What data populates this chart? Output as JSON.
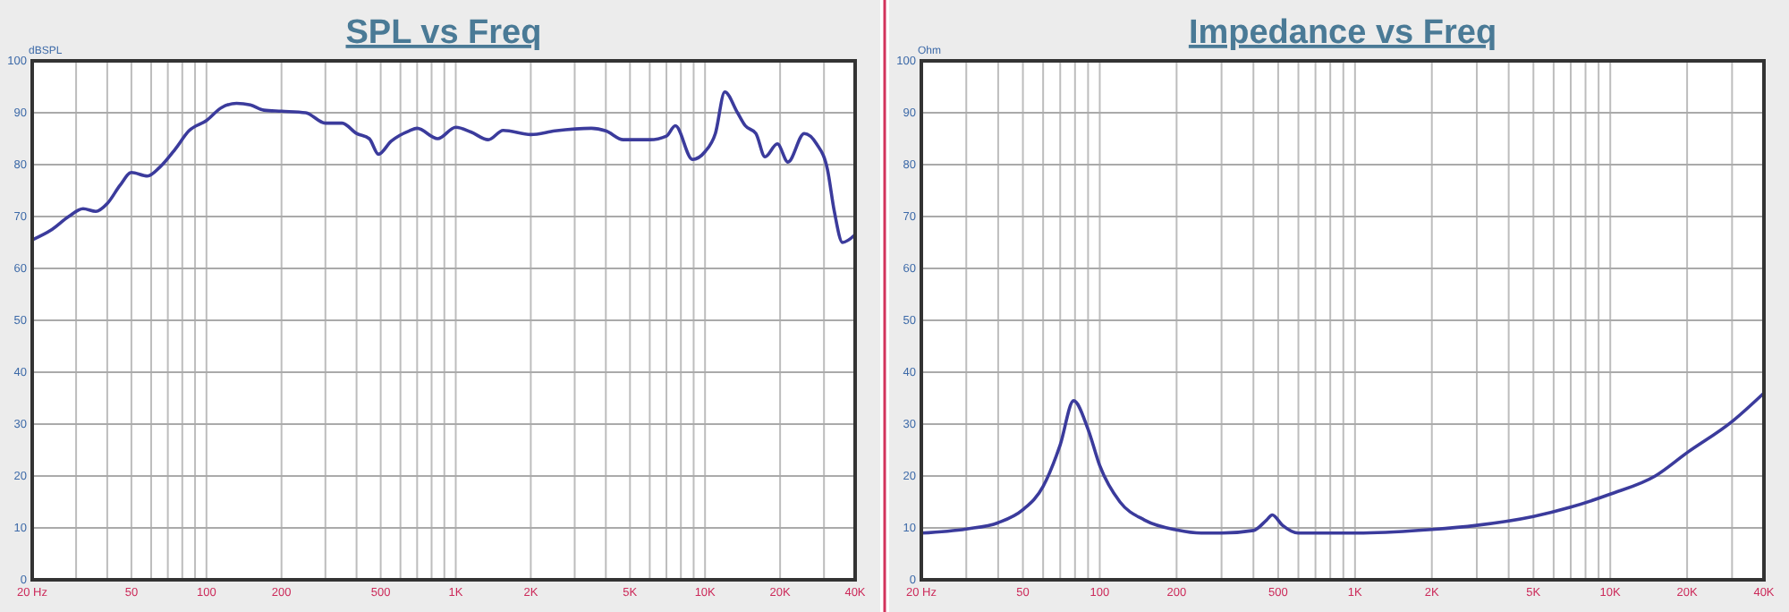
{
  "chart_data": [
    {
      "type": "line",
      "title": "SPL vs Freq",
      "ylabel": "dBSPL",
      "log": "x",
      "grid": true,
      "xlim": [
        20,
        40000
      ],
      "ylim": [
        0,
        100
      ],
      "xticks": [
        {
          "value": 20,
          "label": "20 Hz"
        },
        {
          "value": 30,
          "label": null
        },
        {
          "value": 40,
          "label": null
        },
        50,
        {
          "value": 60,
          "label": null
        },
        {
          "value": 70,
          "label": null
        },
        {
          "value": 80,
          "label": null
        },
        {
          "value": 90,
          "label": null
        },
        100,
        200,
        {
          "value": 300,
          "label": null
        },
        {
          "value": 400,
          "label": null
        },
        500,
        {
          "value": 600,
          "label": null
        },
        {
          "value": 700,
          "label": null
        },
        {
          "value": 800,
          "label": null
        },
        {
          "value": 900,
          "label": null
        },
        {
          "value": 1000,
          "label": "1K"
        },
        {
          "value": 2000,
          "label": "2K"
        },
        {
          "value": 3000,
          "label": null
        },
        {
          "value": 4000,
          "label": null
        },
        {
          "value": 5000,
          "label": "5K"
        },
        {
          "value": 6000,
          "label": null
        },
        {
          "value": 7000,
          "label": null
        },
        {
          "value": 8000,
          "label": null
        },
        {
          "value": 9000,
          "label": null
        },
        {
          "value": 10000,
          "label": "10K"
        },
        {
          "value": 20000,
          "label": "20K"
        },
        {
          "value": 30000,
          "label": null
        },
        {
          "value": 40000,
          "label": "40K"
        }
      ],
      "yticks": [
        0,
        10,
        20,
        30,
        40,
        50,
        60,
        70,
        80,
        90,
        100
      ],
      "series": [
        {
          "color": "#3b3b9c",
          "x": [
            20,
            24,
            28,
            32,
            36,
            40,
            45,
            50,
            58,
            65,
            75,
            85,
            100,
            115,
            132,
            150,
            170,
            200,
            250,
            300,
            350,
            400,
            450,
            490,
            550,
            650,
            700,
            846,
            1000,
            1150,
            1350,
            1550,
            2000,
            2500,
            3500,
            4000,
            4700,
            6000,
            7000,
            7600,
            8900,
            10000,
            11000,
            12000,
            13500,
            14500,
            16000,
            17400,
            19500,
            21500,
            25000,
            28000,
            31000,
            33000,
            35600,
            40000
          ],
          "values": [
            65.5,
            67.5,
            70,
            71.5,
            71,
            72.5,
            76,
            78.5,
            77.8,
            79.5,
            83,
            86.5,
            88.5,
            91,
            91.8,
            91.5,
            90.5,
            90.3,
            90,
            88,
            88,
            86,
            85,
            82,
            84.5,
            86.5,
            87,
            85,
            87.2,
            86.3,
            84.8,
            86.6,
            85.8,
            86.5,
            87,
            86.5,
            84.8,
            84.8,
            85.5,
            87.5,
            81,
            82.5,
            86,
            94,
            90,
            87.5,
            86,
            81.5,
            84,
            80.5,
            86,
            84,
            79,
            71,
            65,
            66.5
          ]
        }
      ]
    },
    {
      "type": "line",
      "title": "Impedance vs Freq",
      "ylabel": "Ohm",
      "log": "x",
      "grid": true,
      "xlim": [
        20,
        40000
      ],
      "ylim": [
        0,
        100
      ],
      "xticks": [
        {
          "value": 20,
          "label": "20 Hz"
        },
        {
          "value": 30,
          "label": null
        },
        {
          "value": 40,
          "label": null
        },
        50,
        {
          "value": 60,
          "label": null
        },
        {
          "value": 70,
          "label": null
        },
        {
          "value": 80,
          "label": null
        },
        {
          "value": 90,
          "label": null
        },
        100,
        200,
        {
          "value": 300,
          "label": null
        },
        {
          "value": 400,
          "label": null
        },
        500,
        {
          "value": 600,
          "label": null
        },
        {
          "value": 700,
          "label": null
        },
        {
          "value": 800,
          "label": null
        },
        {
          "value": 900,
          "label": null
        },
        {
          "value": 1000,
          "label": "1K"
        },
        {
          "value": 2000,
          "label": "2K"
        },
        {
          "value": 3000,
          "label": null
        },
        {
          "value": 4000,
          "label": null
        },
        {
          "value": 5000,
          "label": "5K"
        },
        {
          "value": 6000,
          "label": null
        },
        {
          "value": 7000,
          "label": null
        },
        {
          "value": 8000,
          "label": null
        },
        {
          "value": 9000,
          "label": null
        },
        {
          "value": 10000,
          "label": "10K"
        },
        {
          "value": 20000,
          "label": "20K"
        },
        {
          "value": 30000,
          "label": null
        },
        {
          "value": 40000,
          "label": "40K"
        }
      ],
      "yticks": [
        0,
        10,
        20,
        30,
        40,
        50,
        60,
        70,
        80,
        90,
        100
      ],
      "series": [
        {
          "color": "#3b3b9c",
          "x": [
            20,
            30,
            40,
            50,
            60,
            70,
            79,
            90,
            100,
            120,
            150,
            200,
            250,
            300,
            400,
            450,
            474,
            520,
            600,
            800,
            1000,
            2000,
            3000,
            5000,
            7000,
            10000,
            15000,
            20000,
            30000,
            40000
          ],
          "values": [
            9,
            9.8,
            11,
            13.5,
            18,
            26,
            34.5,
            29,
            22,
            15,
            11.5,
            9.6,
            9,
            9,
            9.5,
            11.5,
            12.5,
            10.5,
            9,
            9,
            9,
            9.7,
            10.5,
            12.2,
            14,
            16.5,
            20,
            24.5,
            30.5,
            36
          ]
        }
      ]
    }
  ]
}
